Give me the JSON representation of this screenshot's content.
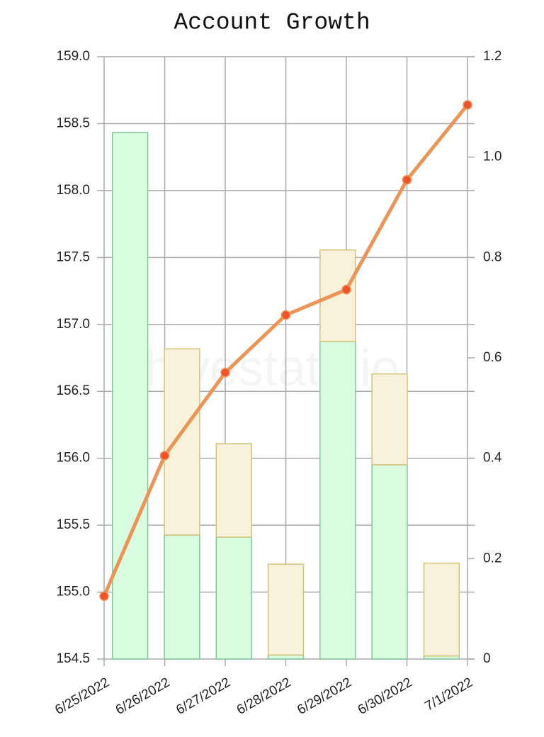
{
  "chart_data": {
    "type": "bar",
    "title": "Account Growth",
    "watermark": "hivestats.io",
    "categories": [
      "6/25/2022",
      "6/26/2022",
      "6/27/2022",
      "6/28/2022",
      "6/29/2022",
      "6/30/2022",
      "7/1/2022"
    ],
    "stacked": true,
    "grid": true,
    "series": [
      {
        "type": "bar",
        "axis": "y2",
        "color": "#d9fbe0",
        "stroke": "#7fc99a",
        "values": [
          1.049,
          0.247,
          0.243,
          0.008,
          0.633,
          0.387,
          0.006
        ]
      },
      {
        "type": "bar",
        "axis": "y2",
        "color": "#f7f2d9",
        "stroke": "#d4c27a",
        "values": [
          0,
          0.371,
          0.186,
          0.181,
          0.182,
          0.181,
          0.185
        ]
      },
      {
        "type": "line",
        "axis": "y",
        "color": "#ec9455",
        "point_color": "#f0522a",
        "values": [
          154.97,
          156.02,
          156.64,
          157.07,
          157.26,
          158.08,
          158.64
        ]
      }
    ],
    "ylim": [
      154.5,
      159
    ],
    "yticks": [
      154.5,
      {
        "value": 155,
        "label": "155.0"
      },
      155.5,
      {
        "value": 156,
        "label": "156.0"
      },
      156.5,
      {
        "value": 157,
        "label": "157.0"
      },
      157.5,
      {
        "value": 158,
        "label": "158.0"
      },
      158.5,
      {
        "value": 159,
        "label": "159.0"
      }
    ],
    "y2lim": [
      0,
      1.2
    ],
    "y2ticks": [
      0,
      0.2,
      0.4,
      0.6,
      0.8,
      {
        "value": 1,
        "label": "1.0"
      },
      1.2
    ]
  }
}
